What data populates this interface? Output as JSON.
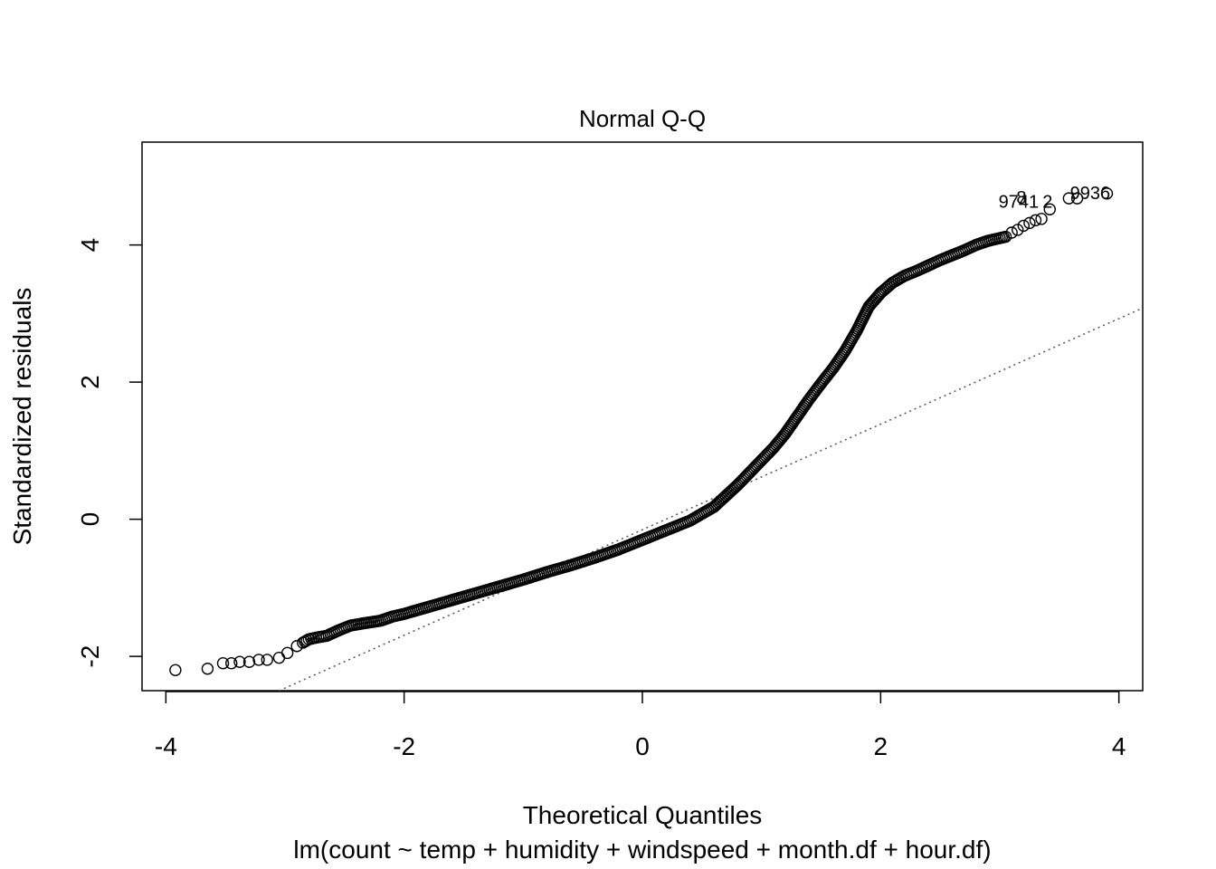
{
  "chart_data": {
    "type": "scatter",
    "title": "Normal Q-Q",
    "xlabel": "Theoretical Quantiles",
    "ylabel": "Standardized residuals",
    "subtitle": "lm(count ~ temp + humidity + windspeed + month.df + hour.df)",
    "xlim": [
      -4.2,
      4.2
    ],
    "ylim": [
      -2.5,
      5.5
    ],
    "xticks": [
      -4,
      -2,
      0,
      2,
      4
    ],
    "yticks": [
      -2,
      0,
      2,
      4
    ],
    "grid": false,
    "reference_line": {
      "style": "dotted",
      "points": [
        [
          -3.05,
          -2.5
        ],
        [
          0.86,
          0.55
        ],
        [
          4.2,
          3.08
        ]
      ]
    },
    "series": [
      {
        "x": [
          -3.92,
          -3.65,
          -3.52,
          -3.45,
          -3.38,
          -3.3,
          -3.22,
          -3.15,
          -3.05,
          -2.98,
          -2.9,
          -2.85,
          -2.8,
          -2.72,
          -2.65,
          -2.55,
          -2.45,
          -2.35,
          -2.2,
          -2.1,
          -2.0,
          -1.8,
          -1.6,
          -1.4,
          -1.2,
          -1.0,
          -0.8,
          -0.6,
          -0.4,
          -0.2,
          0.0,
          0.2,
          0.4,
          0.6,
          0.7,
          0.8,
          0.9,
          1.0,
          1.1,
          1.2,
          1.3,
          1.4,
          1.5,
          1.6,
          1.7,
          1.8,
          1.9,
          2.0,
          2.1,
          2.2,
          2.3,
          2.4,
          2.5,
          2.6,
          2.7,
          2.8,
          2.9,
          2.95,
          3.0,
          3.05,
          3.1,
          3.15,
          3.2,
          3.25,
          3.3,
          3.35,
          3.42,
          3.58,
          3.65,
          3.9
        ],
        "y": [
          -2.2,
          -2.18,
          -2.1,
          -2.1,
          -2.08,
          -2.08,
          -2.05,
          -2.05,
          -2.02,
          -1.95,
          -1.85,
          -1.8,
          -1.75,
          -1.72,
          -1.7,
          -1.62,
          -1.55,
          -1.52,
          -1.48,
          -1.42,
          -1.38,
          -1.28,
          -1.18,
          -1.08,
          -0.98,
          -0.88,
          -0.77,
          -0.67,
          -0.56,
          -0.44,
          -0.3,
          -0.16,
          -0.02,
          0.18,
          0.34,
          0.5,
          0.68,
          0.86,
          1.04,
          1.25,
          1.5,
          1.75,
          1.98,
          2.2,
          2.45,
          2.75,
          3.1,
          3.3,
          3.45,
          3.55,
          3.62,
          3.7,
          3.78,
          3.85,
          3.92,
          4.0,
          4.06,
          4.08,
          4.1,
          4.12,
          4.18,
          4.22,
          4.28,
          4.32,
          4.36,
          4.38,
          4.52,
          4.68,
          4.68,
          4.75
        ]
      }
    ],
    "annotations": [
      {
        "text": "9936",
        "x": 3.65,
        "y": 4.75
      },
      {
        "text": "9741",
        "x": 3.05,
        "y": 4.62
      },
      {
        "text": "2",
        "x": 3.42,
        "y": 4.62
      },
      {
        "text": "8",
        "x": 3.2,
        "y": 4.68
      }
    ]
  }
}
